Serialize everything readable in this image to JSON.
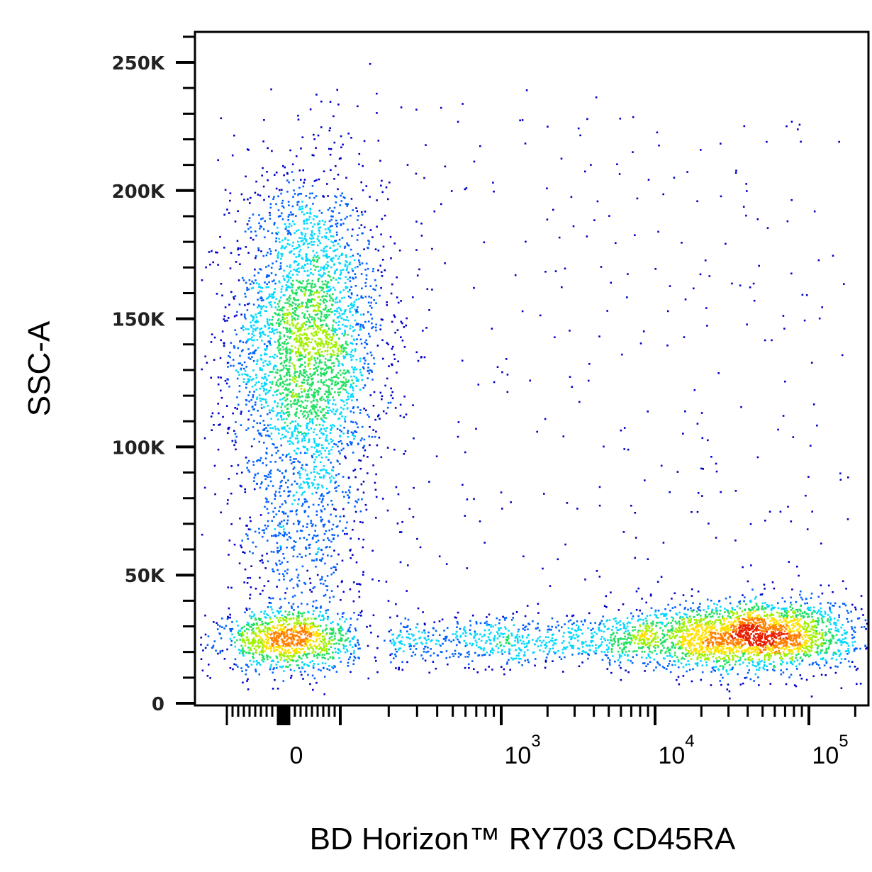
{
  "chart_data": {
    "type": "scatter",
    "subtype": "flow-cytometry-density-dot-plot",
    "title": "",
    "xlabel": "BD Horizon™ RY703 CD45RA",
    "ylabel": "SSC-A",
    "x_scale": "biexponential",
    "y_scale": "linear",
    "ylim": [
      0,
      262144
    ],
    "xlim": [
      -200,
      200000
    ],
    "y_ticks": [
      {
        "value": 0,
        "label": "0"
      },
      {
        "value": 50000,
        "label": "50K"
      },
      {
        "value": 100000,
        "label": "100K"
      },
      {
        "value": 150000,
        "label": "150K"
      },
      {
        "value": 200000,
        "label": "200K"
      },
      {
        "value": 250000,
        "label": "250K"
      }
    ],
    "x_ticks": [
      {
        "value": 0,
        "base": "0",
        "exp": ""
      },
      {
        "value": 1000,
        "base": "10",
        "exp": "3"
      },
      {
        "value": 10000,
        "base": "10",
        "exp": "4"
      },
      {
        "value": 100000,
        "base": "10",
        "exp": "5"
      }
    ],
    "color_scale": [
      "#0000c8",
      "#0060ff",
      "#00d8ff",
      "#20e060",
      "#a0f000",
      "#ffe000",
      "#ff8000",
      "#e82000"
    ],
    "grid": false,
    "populations": [
      {
        "x": 40,
        "y": 140000,
        "x_spread_decades": 0.25,
        "y_sd": 32000,
        "count": 3200
      },
      {
        "x": 10,
        "y": 25000,
        "x_spread_decades": 0.22,
        "y_sd": 6000,
        "count": 1100
      },
      {
        "x": 50000,
        "y": 27000,
        "x_spread_decades": 0.32,
        "y_sd": 7000,
        "count": 1900
      },
      {
        "x": 15000,
        "y": 25000,
        "x_spread_decades": 0.25,
        "y_sd": 6000,
        "count": 500
      },
      {
        "x": 30,
        "y": 65000,
        "x_spread_decades": 0.2,
        "y_sd": 18000,
        "count": 380
      }
    ],
    "bridge": {
      "x_from": 200,
      "x_to": 10000,
      "y": 25000,
      "y_sd": 5000,
      "count": 750
    },
    "background_events": 420
  }
}
